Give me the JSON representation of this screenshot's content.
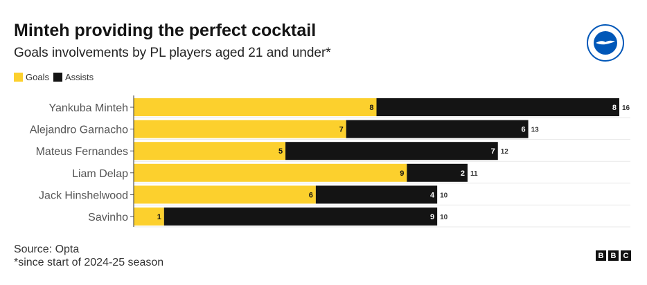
{
  "title": "Minteh providing the perfect cocktail",
  "subtitle": "Goals involvements by PL players aged 21 and under*",
  "source": "Source: Opta",
  "footnote": "*since start of 2024-25 season",
  "logo_text": "BRIGHTON & HOVE ALBION",
  "bbc": [
    "B",
    "B",
    "C"
  ],
  "chart_data": {
    "type": "bar",
    "orientation": "horizontal",
    "stacked": true,
    "title": "Minteh providing the perfect cocktail",
    "categories": [
      "Yankuba Minteh",
      "Alejandro Garnacho",
      "Mateus Fernandes",
      "Liam Delap",
      "Jack Hinshelwood",
      "Savinho"
    ],
    "series": [
      {
        "name": "Goals",
        "color": "#fcd02d",
        "values": [
          8,
          7,
          5,
          9,
          6,
          1
        ]
      },
      {
        "name": "Assists",
        "color": "#141414",
        "values": [
          8,
          6,
          7,
          2,
          4,
          9
        ]
      }
    ],
    "totals": [
      16,
      13,
      12,
      11,
      10,
      10
    ],
    "xlim": [
      0,
      16
    ],
    "legend": "top-left"
  }
}
